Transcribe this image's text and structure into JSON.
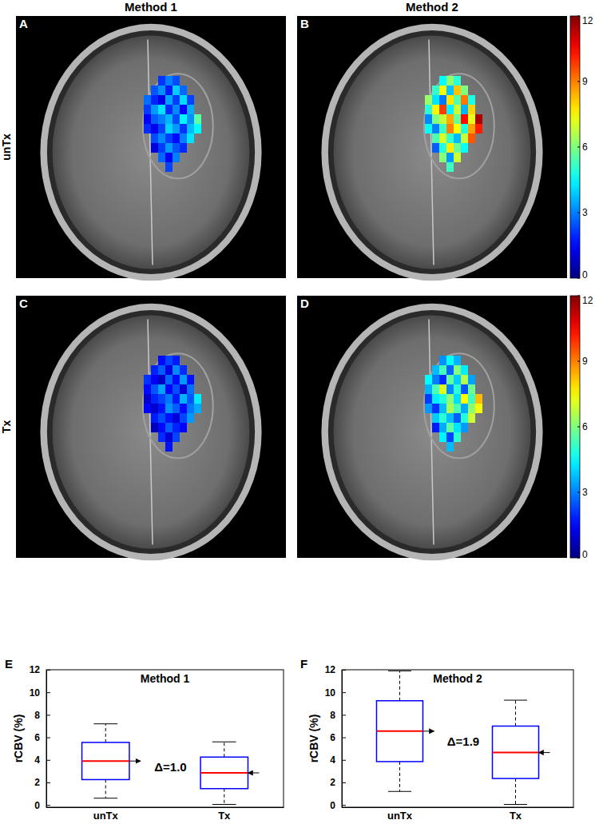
{
  "column_titles": [
    "Method 1",
    "Method 2"
  ],
  "row_titles": [
    "unTx",
    "Tx"
  ],
  "chart_data": [
    {
      "type": "heatmap",
      "label": "A",
      "color_range": [
        0,
        12
      ],
      "cells": [
        [
          null,
          null,
          2.1,
          3.0,
          2.4,
          null,
          null,
          null
        ],
        [
          null,
          2.5,
          3.2,
          1.8,
          3.9,
          2.7,
          null,
          null
        ],
        [
          2.8,
          1.9,
          1.2,
          3.4,
          2.2,
          4.1,
          2.3,
          null
        ],
        [
          2.2,
          3.3,
          4.2,
          2.0,
          3.1,
          1.5,
          3.5,
          null
        ],
        [
          1.4,
          2.6,
          3.0,
          3.6,
          2.4,
          4.4,
          3.2,
          5.6
        ],
        [
          2.0,
          1.3,
          2.3,
          4.0,
          3.3,
          2.1,
          3.7,
          4.5
        ],
        [
          null,
          2.4,
          3.1,
          2.2,
          1.6,
          3.0,
          4.2,
          null
        ],
        [
          null,
          1.1,
          2.2,
          3.3,
          2.5,
          2.0,
          null,
          null
        ],
        [
          null,
          null,
          2.7,
          1.4,
          3.0,
          null,
          null,
          null
        ],
        [
          null,
          null,
          null,
          2.3,
          null,
          null,
          null,
          null
        ]
      ]
    },
    {
      "type": "heatmap",
      "label": "B",
      "color_range": [
        0,
        12
      ],
      "color_ticks": [
        0,
        3,
        6,
        9,
        12
      ],
      "cells": [
        [
          null,
          null,
          4.5,
          6.2,
          5.0,
          null,
          null,
          null
        ],
        [
          null,
          5.1,
          7.4,
          3.8,
          8.2,
          6.0,
          null,
          null
        ],
        [
          6.3,
          4.2,
          2.9,
          7.8,
          5.5,
          9.1,
          4.8,
          null
        ],
        [
          5.0,
          7.6,
          9.8,
          4.4,
          6.9,
          3.6,
          8.0,
          null
        ],
        [
          3.1,
          6.0,
          6.8,
          8.5,
          5.7,
          10.4,
          7.2,
          11.5
        ],
        [
          4.6,
          3.0,
          5.2,
          9.0,
          7.5,
          4.9,
          8.6,
          10.2
        ],
        [
          null,
          5.4,
          7.0,
          5.1,
          3.7,
          6.8,
          9.5,
          null
        ],
        [
          null,
          2.6,
          4.9,
          7.7,
          5.8,
          4.6,
          null,
          null
        ],
        [
          null,
          null,
          6.1,
          3.3,
          6.9,
          null,
          null,
          null
        ],
        [
          null,
          null,
          null,
          5.2,
          null,
          null,
          null,
          null
        ]
      ]
    },
    {
      "type": "heatmap",
      "label": "C",
      "color_range": [
        0,
        12
      ],
      "cells": [
        [
          null,
          null,
          1.6,
          2.3,
          1.8,
          null,
          null,
          null
        ],
        [
          null,
          1.9,
          2.6,
          1.2,
          3.1,
          2.0,
          null,
          null
        ],
        [
          2.1,
          1.4,
          0.8,
          2.7,
          1.6,
          3.3,
          1.7,
          null
        ],
        [
          1.6,
          2.5,
          3.4,
          1.5,
          2.4,
          1.0,
          2.8,
          null
        ],
        [
          0.9,
          1.9,
          2.3,
          2.9,
          1.8,
          3.6,
          2.5,
          4.3
        ],
        [
          1.5,
          0.9,
          1.7,
          3.2,
          2.6,
          1.6,
          2.9,
          3.5
        ],
        [
          null,
          1.8,
          2.4,
          1.7,
          1.1,
          2.3,
          3.3,
          null
        ],
        [
          null,
          0.7,
          1.6,
          2.6,
          1.9,
          1.5,
          null,
          null
        ],
        [
          null,
          null,
          2.0,
          1.0,
          2.3,
          null,
          null,
          null
        ],
        [
          null,
          null,
          null,
          1.7,
          null,
          null,
          null,
          null
        ]
      ]
    },
    {
      "type": "heatmap",
      "label": "D",
      "color_range": [
        0,
        12
      ],
      "color_ticks": [
        0,
        3,
        6,
        9,
        12
      ],
      "cells": [
        [
          null,
          null,
          3.2,
          4.6,
          3.6,
          null,
          null,
          null
        ],
        [
          null,
          3.7,
          5.3,
          2.7,
          6.0,
          4.3,
          null,
          null
        ],
        [
          4.5,
          3.0,
          2.0,
          5.6,
          3.9,
          6.6,
          3.4,
          null
        ],
        [
          3.6,
          5.4,
          7.1,
          3.1,
          5.0,
          2.5,
          5.8,
          null
        ],
        [
          2.2,
          4.3,
          4.9,
          6.1,
          4.1,
          7.5,
          5.2,
          8.3
        ],
        [
          3.3,
          2.1,
          3.7,
          6.5,
          5.4,
          3.5,
          6.2,
          7.4
        ],
        [
          null,
          3.9,
          5.0,
          3.7,
          2.6,
          4.9,
          6.9,
          null
        ],
        [
          null,
          1.8,
          3.5,
          5.6,
          4.2,
          3.3,
          null,
          null
        ],
        [
          null,
          null,
          4.4,
          2.3,
          5.0,
          null,
          null,
          null
        ],
        [
          null,
          null,
          null,
          3.7,
          null,
          null,
          null,
          null
        ]
      ]
    },
    {
      "type": "box",
      "label": "E",
      "title": "Method 1",
      "ylabel": "rCBV (%)",
      "categories": [
        "unTx",
        "Tx"
      ],
      "color": "#0000ff",
      "median_color": "#ff0000",
      "ylim": [
        -0.2,
        12
      ],
      "yticks": [
        0,
        2,
        4,
        6,
        8,
        10,
        12
      ],
      "boxes": [
        {
          "whisker_low": 0.6,
          "q1": 2.25,
          "median": 3.9,
          "q3": 5.55,
          "whisker_high": 7.2
        },
        {
          "whisker_low": 0.05,
          "q1": 1.45,
          "median": 2.85,
          "q3": 4.25,
          "whisker_high": 5.6
        }
      ],
      "annotation": "Δ=1.0"
    },
    {
      "type": "box",
      "label": "F",
      "title": "Method 2",
      "ylabel": "rCBV (%)",
      "categories": [
        "unTx",
        "Tx"
      ],
      "color": "#0000ff",
      "median_color": "#ff0000",
      "ylim": [
        -0.2,
        12
      ],
      "yticks": [
        0,
        2,
        4,
        6,
        8,
        10,
        12
      ],
      "boxes": [
        {
          "whisker_low": 1.2,
          "q1": 3.85,
          "median": 6.55,
          "q3": 9.25,
          "whisker_high": 11.9
        },
        {
          "whisker_low": 0.05,
          "q1": 2.35,
          "median": 4.65,
          "q3": 7.0,
          "whisker_high": 9.3
        }
      ],
      "annotation": "Δ=1.9"
    }
  ]
}
